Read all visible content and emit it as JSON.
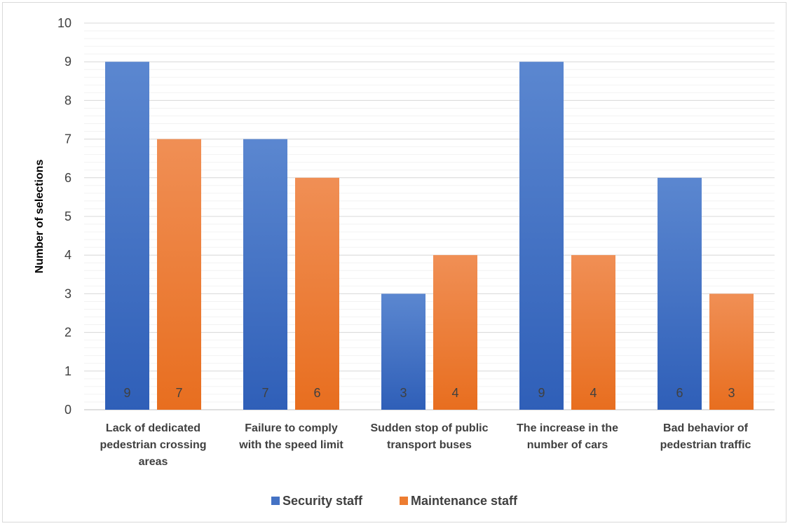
{
  "chart_data": {
    "type": "bar",
    "categories": [
      [
        "Lack of dedicated",
        "pedestrian crossing",
        "areas"
      ],
      [
        "Failure to comply",
        "with the speed limit"
      ],
      [
        "Sudden stop of public",
        "transport buses"
      ],
      [
        "The increase in the",
        "number of cars"
      ],
      [
        "Bad behavior of",
        "pedestrian traffic"
      ]
    ],
    "series": [
      {
        "name": "Security staff",
        "values": [
          9,
          7,
          3,
          9,
          6
        ],
        "color": "#4472c4"
      },
      {
        "name": "Maintenance staff",
        "values": [
          7,
          6,
          4,
          4,
          3
        ],
        "color": "#ed7d31"
      }
    ],
    "ylabel": "Number of selections",
    "ylim": [
      0,
      10
    ],
    "yticks": [
      0,
      1,
      2,
      3,
      4,
      5,
      6,
      7,
      8,
      9,
      10
    ],
    "grid": true,
    "minor_grid": true,
    "legend": "bottom",
    "data_labels": "inside-base"
  }
}
